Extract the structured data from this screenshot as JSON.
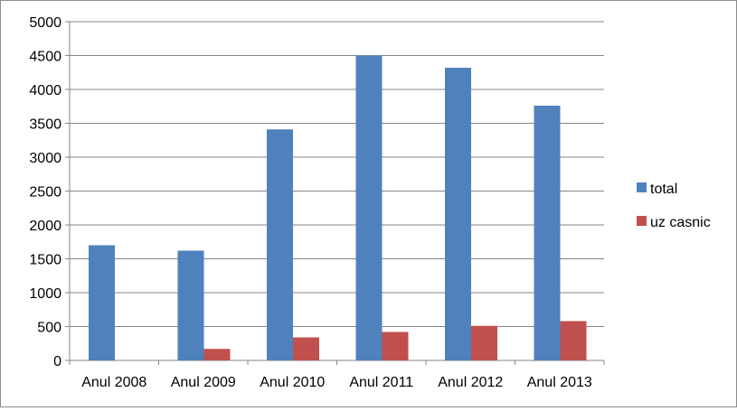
{
  "chart_data": {
    "type": "bar",
    "categories": [
      "Anul 2008",
      "Anul 2009",
      "Anul 2010",
      "Anul 2011",
      "Anul 2012",
      "Anul 2013"
    ],
    "series": [
      {
        "name": "total",
        "color": "#4f81bd",
        "values": [
          1700,
          1620,
          3410,
          4500,
          4320,
          3760
        ]
      },
      {
        "name": "uz casnic",
        "color": "#c0504d",
        "values": [
          0,
          170,
          340,
          420,
          510,
          580
        ]
      }
    ],
    "ylim": [
      0,
      5000
    ],
    "yticks": [
      0,
      500,
      1000,
      1500,
      2000,
      2500,
      3000,
      3500,
      4000,
      4500,
      5000
    ],
    "grid": true,
    "legend": "right",
    "xlabel": "",
    "ylabel": "",
    "title": ""
  }
}
